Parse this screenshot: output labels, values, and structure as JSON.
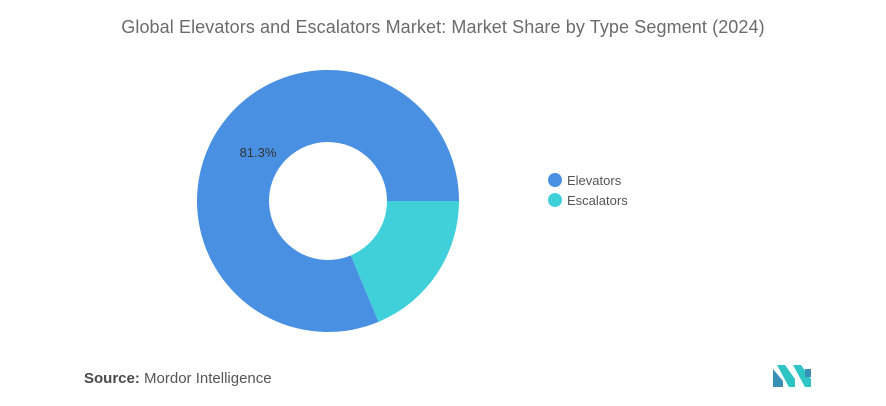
{
  "title": "Global Elevators and Escalators Market: Market Share by Type Segment (2024)",
  "chart_data": {
    "type": "pie",
    "variant": "donut",
    "categories": [
      "Elevators",
      "Escalators"
    ],
    "values": [
      81.3,
      18.7
    ],
    "colors": [
      "#4a90e2",
      "#3fd0da"
    ],
    "data_labels": [
      "81.3%",
      ""
    ],
    "legend_position": "right"
  },
  "source": {
    "label": "Source:",
    "text": "Mordor Intelligence"
  },
  "logo": {
    "icon": "mordor-intelligence-logo",
    "colors": [
      "#3a8fb7",
      "#2ec4c4"
    ]
  }
}
